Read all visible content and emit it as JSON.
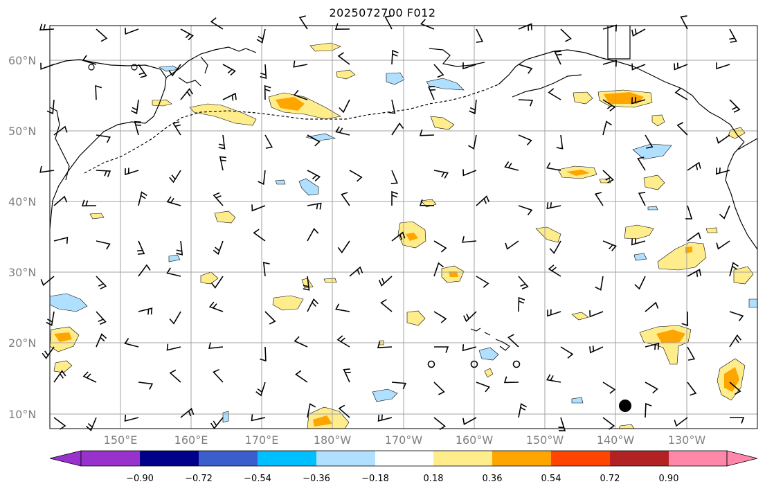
{
  "title": "2025072700 F012",
  "lat_labels": [
    "10°N",
    "20°N",
    "30°N",
    "40°N",
    "50°N",
    "60°N"
  ],
  "lon_labels": [
    "150°E",
    "160°E",
    "170°E",
    "180°W",
    "170°W",
    "160°W",
    "150°W",
    "140°W",
    "130°W"
  ],
  "colorbar": {
    "tick_labels": [
      "−0.90",
      "−0.72",
      "−0.54",
      "−0.36",
      "−0.18",
      "0.18",
      "0.36",
      "0.54",
      "0.72",
      "0.90"
    ],
    "colors": [
      "#9932cc",
      "#00008b",
      "#3a5fcd",
      "#00bfff",
      "#b0e0ff",
      "#ffffff",
      "#ffec8b",
      "#ffa500",
      "#ff4500",
      "#b22222",
      "#ff88aa"
    ]
  },
  "map": {
    "extent": {
      "lon_min": 140,
      "lon_max": 240,
      "lat_min": 8,
      "lat_max": 65
    },
    "gridline_color": "#a0a0a0",
    "marker_color": "#000000",
    "barb_color": "#000000"
  }
}
